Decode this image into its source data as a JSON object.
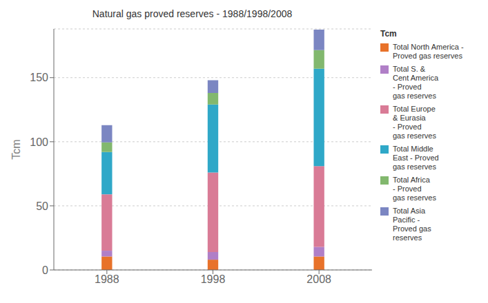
{
  "chart_data": {
    "type": "bar",
    "title": "Natural gas proved reserves - 1988/1998/2008",
    "ylabel": "Tcm",
    "legend_title": "Tcm",
    "categories": [
      "1988",
      "1998",
      "2008"
    ],
    "series": [
      {
        "name": "Total North America -\nProved gas reserves",
        "color": "#E8722A",
        "values": [
          10.5,
          8.0,
          10.5
        ]
      },
      {
        "name": "Total S. &\nCent America\n- Proved\ngas reserves",
        "color": "#B07FC7",
        "values": [
          4.5,
          6.0,
          7.5
        ]
      },
      {
        "name": "Total Europe\n& Eurasia\n- Proved\ngas reserves",
        "color": "#D97B96",
        "values": [
          44.0,
          62.0,
          63.0
        ]
      },
      {
        "name": "Total Middle\nEast - Proved\ngas reserves",
        "color": "#2FA8C8",
        "values": [
          33.0,
          53.0,
          76.0
        ]
      },
      {
        "name": "Total Africa\n- Proved\ngas reserves",
        "color": "#82B86E",
        "values": [
          7.5,
          9.0,
          14.5
        ]
      },
      {
        "name": "Total Asia\nPacific -\nProved gas\nreserves",
        "color": "#7B86C2",
        "values": [
          13.5,
          10.0,
          16.0
        ]
      }
    ],
    "ylim": [
      0,
      188
    ],
    "yticks": [
      0,
      50,
      100,
      150
    ],
    "stacked": true,
    "grid": true,
    "legend": "right"
  }
}
